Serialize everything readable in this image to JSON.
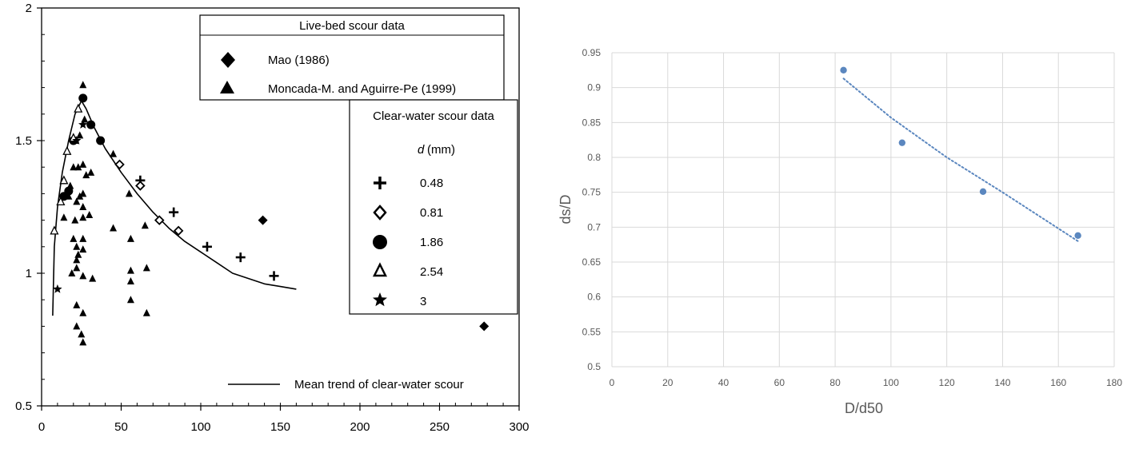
{
  "chart_data": [
    {
      "type": "scatter",
      "title": "",
      "xlabel": "",
      "ylabel": "",
      "xlim": [
        0,
        300
      ],
      "ylim": [
        0.5,
        2
      ],
      "x_ticks": [
        "0",
        "50",
        "100",
        "150",
        "200",
        "250",
        "300"
      ],
      "y_ticks": [
        "0.5",
        "1",
        "1.5",
        "2"
      ],
      "grid": false,
      "legend_live_title": "Live-bed scour data",
      "legend_clear_title": "Clear-water scour data",
      "legend_d_label": "d",
      "legend_d_unit": "(mm)",
      "mean_trend_label": "Mean trend of clear-water scour",
      "series": [
        {
          "name": "Mao (1986)",
          "marker": "diamond",
          "group": "live-bed",
          "points": [
            [
              139,
              1.2
            ],
            [
              278,
              0.8
            ]
          ]
        },
        {
          "name": "Moncada-M. and Aguirre-Pe (1999)",
          "marker": "triangle",
          "group": "live-bed",
          "points": [
            [
              14,
              1.21
            ],
            [
              17,
              1.29
            ],
            [
              18,
              1.33
            ],
            [
              19,
              1.0
            ],
            [
              20,
              1.4
            ],
            [
              20,
              1.13
            ],
            [
              21,
              1.2
            ],
            [
              21,
              1.5
            ],
            [
              22,
              1.27
            ],
            [
              22,
              1.1
            ],
            [
              22,
              1.05
            ],
            [
              22,
              1.02
            ],
            [
              22,
              0.88
            ],
            [
              22,
              0.8
            ],
            [
              23,
              1.4
            ],
            [
              23,
              1.07
            ],
            [
              24,
              1.29
            ],
            [
              24,
              1.52
            ],
            [
              25,
              0.77
            ],
            [
              26,
              1.71
            ],
            [
              26,
              1.41
            ],
            [
              26,
              1.3
            ],
            [
              26,
              1.25
            ],
            [
              26,
              1.21
            ],
            [
              26,
              1.13
            ],
            [
              26,
              1.09
            ],
            [
              26,
              0.99
            ],
            [
              26,
              0.85
            ],
            [
              26,
              0.74
            ],
            [
              27,
              1.58
            ],
            [
              28,
              1.37
            ],
            [
              30,
              1.22
            ],
            [
              31,
              1.38
            ],
            [
              32,
              0.98
            ],
            [
              45,
              1.45
            ],
            [
              45,
              1.17
            ],
            [
              55,
              1.3
            ],
            [
              56,
              1.13
            ],
            [
              56,
              1.01
            ],
            [
              56,
              0.97
            ],
            [
              56,
              0.9
            ],
            [
              65,
              1.18
            ],
            [
              66,
              1.02
            ],
            [
              66,
              0.85
            ]
          ]
        },
        {
          "name": "0.48",
          "marker": "plus",
          "group": "clear-water",
          "points": [
            [
              62,
              1.35
            ],
            [
              83,
              1.23
            ],
            [
              104,
              1.1
            ],
            [
              125,
              1.06
            ],
            [
              146,
              0.99
            ]
          ]
        },
        {
          "name": "0.81",
          "marker": "diamond-open",
          "group": "clear-water",
          "points": [
            [
              49,
              1.41
            ],
            [
              62,
              1.33
            ],
            [
              74,
              1.2
            ],
            [
              86,
              1.16
            ]
          ]
        },
        {
          "name": "1.86",
          "marker": "circle",
          "group": "clear-water",
          "points": [
            [
              14,
              1.29
            ],
            [
              17,
              1.31
            ],
            [
              20,
              1.5
            ],
            [
              26,
              1.66
            ],
            [
              31,
              1.56
            ],
            [
              37,
              1.5
            ]
          ]
        },
        {
          "name": "2.54",
          "marker": "triangle-open",
          "group": "clear-water",
          "points": [
            [
              8,
              1.16
            ],
            [
              12,
              1.27
            ],
            [
              14,
              1.35
            ],
            [
              16,
              1.46
            ],
            [
              20,
              1.51
            ],
            [
              23,
              1.62
            ]
          ]
        },
        {
          "name": "3",
          "marker": "star",
          "group": "clear-water",
          "points": [
            [
              10,
              0.94
            ],
            [
              22,
              1.5
            ],
            [
              26,
              1.56
            ]
          ]
        }
      ],
      "mean_trend": [
        [
          7,
          0.84
        ],
        [
          8,
          1.1
        ],
        [
          10,
          1.25
        ],
        [
          13,
          1.38
        ],
        [
          17,
          1.5
        ],
        [
          21,
          1.6
        ],
        [
          25,
          1.65
        ],
        [
          28,
          1.62
        ],
        [
          33,
          1.55
        ],
        [
          40,
          1.47
        ],
        [
          50,
          1.38
        ],
        [
          60,
          1.3
        ],
        [
          70,
          1.23
        ],
        [
          80,
          1.17
        ],
        [
          90,
          1.12
        ],
        [
          100,
          1.08
        ],
        [
          110,
          1.04
        ],
        [
          120,
          1.0
        ],
        [
          130,
          0.98
        ],
        [
          140,
          0.96
        ],
        [
          150,
          0.95
        ],
        [
          160,
          0.94
        ]
      ]
    },
    {
      "type": "scatter",
      "title": "",
      "xlabel": "D/d50",
      "ylabel": "ds/D",
      "xlim": [
        0,
        180
      ],
      "ylim": [
        0.5,
        0.95
      ],
      "x_ticks": [
        "0",
        "20",
        "40",
        "60",
        "80",
        "100",
        "120",
        "140",
        "160",
        "180"
      ],
      "y_ticks": [
        "0.5",
        "0.55",
        "0.6",
        "0.65",
        "0.7",
        "0.75",
        "0.8",
        "0.85",
        "0.9",
        "0.95"
      ],
      "grid": true,
      "marker_color": "#5B87BF",
      "trend_color": "#5B87BF",
      "trendline": "dotted",
      "points": [
        [
          83,
          0.925
        ],
        [
          104,
          0.821
        ],
        [
          133,
          0.751
        ],
        [
          167,
          0.688
        ]
      ],
      "trend": [
        [
          83,
          0.913
        ],
        [
          100,
          0.857
        ],
        [
          120,
          0.8
        ],
        [
          140,
          0.75
        ],
        [
          167,
          0.68
        ]
      ]
    }
  ]
}
